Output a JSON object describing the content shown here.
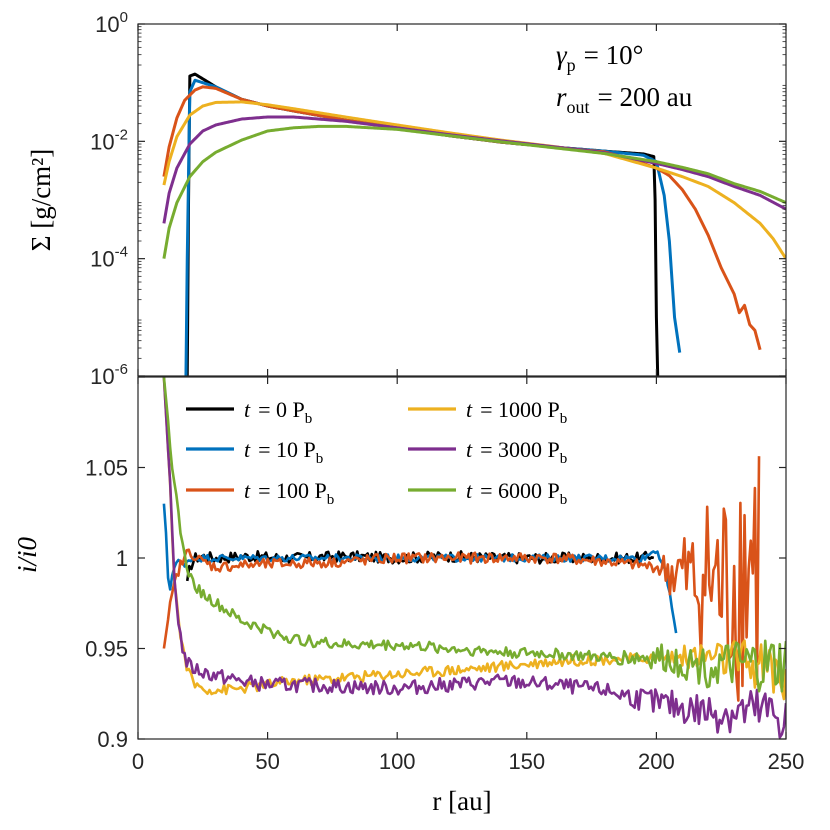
{
  "chart_data": [
    {
      "type": "line",
      "panel": "top",
      "ylabel": "Σ [g/cm²]",
      "yscale": "log",
      "ylim": [
        1e-06,
        1
      ],
      "xlim": [
        0,
        250
      ],
      "yticks": [
        {
          "base": "10",
          "exp": "0",
          "value": 1
        },
        {
          "base": "10",
          "exp": "-2",
          "value": 0.01
        },
        {
          "base": "10",
          "exp": "-4",
          "value": 0.0001
        },
        {
          "base": "10",
          "exp": "-6",
          "value": 1e-06
        }
      ],
      "annotations": [
        {
          "sym": "γ",
          "sub": "p",
          "rest": "= 10°"
        },
        {
          "sym": "r",
          "sub": "out",
          "rest": "= 200 au"
        }
      ],
      "series": [
        {
          "name": "t = 0 Pb",
          "color": "#000000",
          "x": [
            19,
            19.5,
            20,
            22,
            30,
            40,
            50,
            60,
            80,
            100,
            120,
            140,
            160,
            180,
            195,
            199,
            199.5,
            200,
            200.5
          ],
          "y": [
            1e-06,
            0.001,
            0.13,
            0.14,
            0.085,
            0.052,
            0.04,
            0.033,
            0.023,
            0.017,
            0.0125,
            0.0097,
            0.008,
            0.0068,
            0.0061,
            0.0055,
            0.001,
            1e-05,
            1e-06
          ]
        },
        {
          "name": "t = 10 Pb",
          "color": "#0072BD",
          "x": [
            18.5,
            19,
            20,
            22,
            30,
            40,
            50,
            60,
            80,
            100,
            120,
            140,
            160,
            180,
            195,
            200,
            203,
            205,
            207,
            209
          ],
          "y": [
            1e-06,
            0.0001,
            0.07,
            0.11,
            0.085,
            0.052,
            0.04,
            0.033,
            0.023,
            0.017,
            0.0125,
            0.0097,
            0.008,
            0.0068,
            0.0058,
            0.0045,
            0.0012,
            0.0002,
            1e-05,
            2.5e-06
          ]
        },
        {
          "name": "t = 100 Pb",
          "color": "#D95319",
          "x": [
            10,
            12,
            15,
            18,
            22,
            25,
            30,
            40,
            50,
            60,
            80,
            100,
            120,
            140,
            160,
            180,
            190,
            200,
            205,
            210,
            215,
            220,
            225,
            230,
            232,
            234,
            236,
            238,
            240
          ],
          "y": [
            0.0025,
            0.008,
            0.025,
            0.05,
            0.075,
            0.085,
            0.08,
            0.052,
            0.04,
            0.033,
            0.023,
            0.017,
            0.0125,
            0.0097,
            0.008,
            0.0066,
            0.005,
            0.0035,
            0.0026,
            0.0015,
            0.0007,
            0.00025,
            7e-05,
            2.5e-05,
            1.2e-05,
            1.6e-05,
            7.5e-06,
            6e-06,
            2.8e-06
          ]
        },
        {
          "name": "t = 1000 Pb",
          "color": "#EDB120",
          "x": [
            10,
            12,
            15,
            20,
            25,
            30,
            40,
            50,
            60,
            80,
            100,
            120,
            140,
            160,
            180,
            200,
            210,
            220,
            230,
            240,
            245,
            250
          ],
          "y": [
            0.0018,
            0.0045,
            0.012,
            0.028,
            0.04,
            0.046,
            0.047,
            0.042,
            0.036,
            0.026,
            0.019,
            0.014,
            0.0105,
            0.0082,
            0.0062,
            0.0035,
            0.0025,
            0.0017,
            0.0009,
            0.0004,
            0.00022,
            0.0001
          ]
        },
        {
          "name": "t = 3000 Pb",
          "color": "#7E2F8E",
          "x": [
            10,
            12,
            15,
            20,
            25,
            30,
            40,
            50,
            60,
            80,
            100,
            120,
            140,
            160,
            180,
            200,
            210,
            220,
            230,
            240,
            250
          ],
          "y": [
            0.0004,
            0.0013,
            0.0035,
            0.009,
            0.015,
            0.019,
            0.024,
            0.026,
            0.026,
            0.022,
            0.017,
            0.013,
            0.0102,
            0.0081,
            0.0064,
            0.0042,
            0.0033,
            0.0025,
            0.0017,
            0.0012,
            0.0007
          ]
        },
        {
          "name": "t = 6000 Pb",
          "color": "#77AC30",
          "x": [
            10,
            12,
            15,
            20,
            25,
            30,
            40,
            50,
            60,
            70,
            80,
            100,
            120,
            140,
            160,
            180,
            200,
            210,
            220,
            230,
            240,
            250
          ],
          "y": [
            0.0001,
            0.00033,
            0.0009,
            0.0025,
            0.0045,
            0.0065,
            0.0105,
            0.015,
            0.017,
            0.018,
            0.018,
            0.016,
            0.0125,
            0.0098,
            0.0078,
            0.0062,
            0.0045,
            0.0036,
            0.0028,
            0.0019,
            0.0014,
            0.0009
          ]
        }
      ]
    },
    {
      "type": "line",
      "panel": "bottom",
      "ylabel": "i/i0",
      "ylim": [
        0.9,
        1.1
      ],
      "xlim": [
        0,
        250
      ],
      "yticks": [
        "0.9",
        "0.95",
        "1",
        "1.05"
      ],
      "xticks": [
        "0",
        "50",
        "100",
        "150",
        "200",
        "250"
      ],
      "xlabel": "r [au]",
      "legend": [
        {
          "t": "t",
          "rest": "= 0 P",
          "sub": "b",
          "color": "#000000"
        },
        {
          "t": "t",
          "rest": "= 1000 P",
          "sub": "b",
          "color": "#EDB120"
        },
        {
          "t": "t",
          "rest": "= 10 P",
          "sub": "b",
          "color": "#0072BD"
        },
        {
          "t": "t",
          "rest": "= 3000 P",
          "sub": "b",
          "color": "#7E2F8E"
        },
        {
          "t": "t",
          "rest": "= 100 P",
          "sub": "b",
          "color": "#D95319"
        },
        {
          "t": "t",
          "rest": "= 6000 P",
          "sub": "b",
          "color": "#77AC30"
        }
      ],
      "series": [
        {
          "name": "t = 0 Pb",
          "color": "#000000",
          "x": [
            19,
            20,
            22,
            25,
            30,
            40,
            60,
            80,
            100,
            120,
            140,
            160,
            180,
            195,
            199
          ],
          "y": [
            0.985,
            0.995,
            1.0,
            1.001,
            1.0,
            1.001,
            1.0,
            1.001,
            1.0,
            1.001,
            1.0,
            1.0,
            1.0,
            1.0,
            1.002
          ],
          "noise": 0.003
        },
        {
          "name": "t = 10 Pb",
          "color": "#0072BD",
          "x": [
            10,
            11,
            12,
            13,
            15,
            18,
            20,
            25,
            30,
            40,
            60,
            80,
            100,
            120,
            140,
            160,
            180,
            195,
            200,
            203,
            205,
            207,
            208
          ],
          "y": [
            1.03,
            1.01,
            0.975,
            0.99,
            1.0,
            0.995,
            1.0,
            1.0,
            1.0,
            1.0,
            1.0,
            1.0,
            1.0,
            1.0,
            1.0,
            1.0,
            1.0,
            1.0,
            1.005,
            0.995,
            0.98,
            0.965,
            0.955
          ],
          "noise": 0.002
        },
        {
          "name": "t = 100 Pb",
          "color": "#D95319",
          "x": [
            10,
            12,
            14,
            16,
            18,
            20,
            22,
            25,
            30,
            40,
            60,
            80,
            100,
            120,
            140,
            160,
            180,
            200,
            210,
            215,
            220,
            225,
            230,
            235,
            240
          ],
          "y": [
            0.95,
            0.97,
            0.985,
            0.995,
            1.0,
            1.005,
            1.0,
            0.998,
            0.995,
            0.996,
            0.997,
            0.998,
            1.0,
            1.0,
            1.0,
            1.0,
            0.998,
            0.995,
            0.99,
            0.985,
            0.99,
            0.98,
            0.99,
            1.0,
            1.0
          ],
          "noise": 0.003,
          "noiseGrowth": [
            200,
            240,
            0.09
          ]
        },
        {
          "name": "t = 1000 Pb",
          "color": "#EDB120",
          "x": [
            10,
            12,
            14,
            16,
            18,
            20,
            22,
            25,
            30,
            40,
            50,
            60,
            80,
            100,
            120,
            140,
            160,
            180,
            200,
            220,
            240,
            250
          ],
          "y": [
            1.1,
            1.05,
            0.99,
            0.96,
            0.945,
            0.935,
            0.93,
            0.928,
            0.927,
            0.928,
            0.93,
            0.932,
            0.934,
            0.936,
            0.938,
            0.94,
            0.943,
            0.944,
            0.945,
            0.946,
            0.94,
            0.935
          ],
          "noise": 0.003,
          "noiseGrowth": [
            200,
            250,
            0.015
          ]
        },
        {
          "name": "t = 3000 Pb",
          "color": "#7E2F8E",
          "x": [
            10,
            12,
            14,
            16,
            18,
            20,
            25,
            30,
            40,
            50,
            60,
            80,
            100,
            120,
            140,
            160,
            180,
            200,
            220,
            240,
            250
          ],
          "y": [
            1.1,
            1.05,
            0.99,
            0.96,
            0.945,
            0.94,
            0.937,
            0.935,
            0.932,
            0.93,
            0.93,
            0.929,
            0.928,
            0.93,
            0.932,
            0.93,
            0.927,
            0.92,
            0.915,
            0.915,
            0.912
          ],
          "noise": 0.004,
          "noiseGrowth": [
            180,
            250,
            0.012
          ]
        },
        {
          "name": "t = 6000 Pb",
          "color": "#77AC30",
          "x": [
            10,
            12,
            14,
            16,
            18,
            20,
            22,
            25,
            30,
            40,
            50,
            60,
            80,
            100,
            120,
            140,
            160,
            180,
            200,
            220,
            240,
            250
          ],
          "y": [
            1.1,
            1.07,
            1.04,
            1.02,
            1.0,
            0.99,
            0.985,
            0.98,
            0.975,
            0.965,
            0.96,
            0.955,
            0.952,
            0.952,
            0.95,
            0.948,
            0.947,
            0.945,
            0.945,
            0.94,
            0.94,
            0.94
          ],
          "noise": 0.003,
          "noiseGrowth": [
            180,
            250,
            0.015
          ]
        }
      ]
    }
  ]
}
